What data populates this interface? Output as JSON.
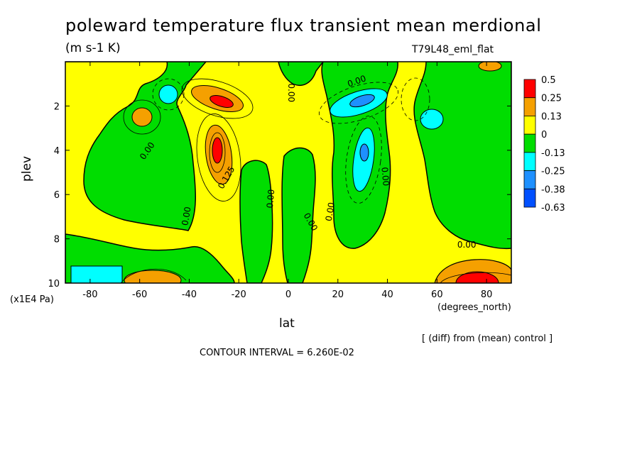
{
  "title": "poleward temperature flux transient mean merdional",
  "units": "(m s-1 K)",
  "run_label": "T79L48_eml_flat",
  "diff_note": "[ (diff) from (mean) control ]",
  "contour_interval": "CONTOUR INTERVAL = 6.260E-02",
  "chart_data": {
    "type": "heatmap",
    "xlabel": "lat",
    "x_unit": "(degrees_north)",
    "ylabel": "plev",
    "y_unit": "(x1E4 Pa)",
    "xlim": [
      -90,
      90
    ],
    "ylim": [
      10,
      0
    ],
    "x_ticks": [
      -80,
      -60,
      -40,
      -20,
      0,
      20,
      40,
      60,
      80
    ],
    "y_ticks": [
      2,
      4,
      6,
      8,
      10
    ],
    "colorbar": {
      "levels": [
        "0.5",
        "0.25",
        "0.13",
        "0",
        "-0.13",
        "-0.25",
        "-0.38",
        "-0.63"
      ],
      "colors": [
        "#ff0000",
        "#ff8c00",
        "#e8a000",
        "#ffff00",
        "#00dd00",
        "#00ffff",
        "#1e90ff",
        "#0000ff"
      ],
      "swatches": [
        "#ff0000",
        "#f5a000",
        "#ffff00",
        "#00dd00",
        "#00ffff",
        "#1e90ff",
        "#0050ff"
      ]
    },
    "features": [
      {
        "lat": -30,
        "plev": 2.0,
        "value": 0.35,
        "kind": "max"
      },
      {
        "lat": -27,
        "plev": 4.0,
        "value": 0.3,
        "kind": "max"
      },
      {
        "lat": -60,
        "plev": 2.8,
        "value": 0.13,
        "kind": "max"
      },
      {
        "lat": 28,
        "plev": 2.2,
        "value": -0.3,
        "kind": "min"
      },
      {
        "lat": 30,
        "plev": 4.2,
        "value": -0.3,
        "kind": "min"
      },
      {
        "lat": 57,
        "plev": 2.8,
        "value": -0.2,
        "kind": "min"
      },
      {
        "lat": -48,
        "plev": 1.6,
        "value": -0.15,
        "kind": "min"
      },
      {
        "lat": -82,
        "plev": 9.5,
        "value": -0.15,
        "kind": "min"
      },
      {
        "lat": 80,
        "plev": 9.8,
        "value": 0.4,
        "kind": "max"
      }
    ],
    "contour_labels": [
      {
        "text": "0.00",
        "lat": -56,
        "plev": 4.1,
        "angle": -55
      },
      {
        "text": "0.125",
        "lat": -24,
        "plev": 5.3,
        "angle": -60
      },
      {
        "text": "0.00",
        "lat": -40,
        "plev": 7.0,
        "angle": -80
      },
      {
        "text": "0.00",
        "lat": -6,
        "plev": 6.2,
        "angle": -85
      },
      {
        "text": "0.00",
        "lat": 8,
        "plev": 7.3,
        "angle": 60
      },
      {
        "text": "0.00",
        "lat": 18,
        "plev": 6.8,
        "angle": -80
      },
      {
        "text": "0.00",
        "lat": 0,
        "plev": 1.4,
        "angle": 90
      },
      {
        "text": "0.00",
        "lat": 28,
        "plev": 1.0,
        "angle": -20
      },
      {
        "text": "0.00",
        "lat": 38,
        "plev": 5.2,
        "angle": 85
      },
      {
        "text": "0.00",
        "lat": 72,
        "plev": 8.4,
        "angle": 0
      }
    ]
  }
}
